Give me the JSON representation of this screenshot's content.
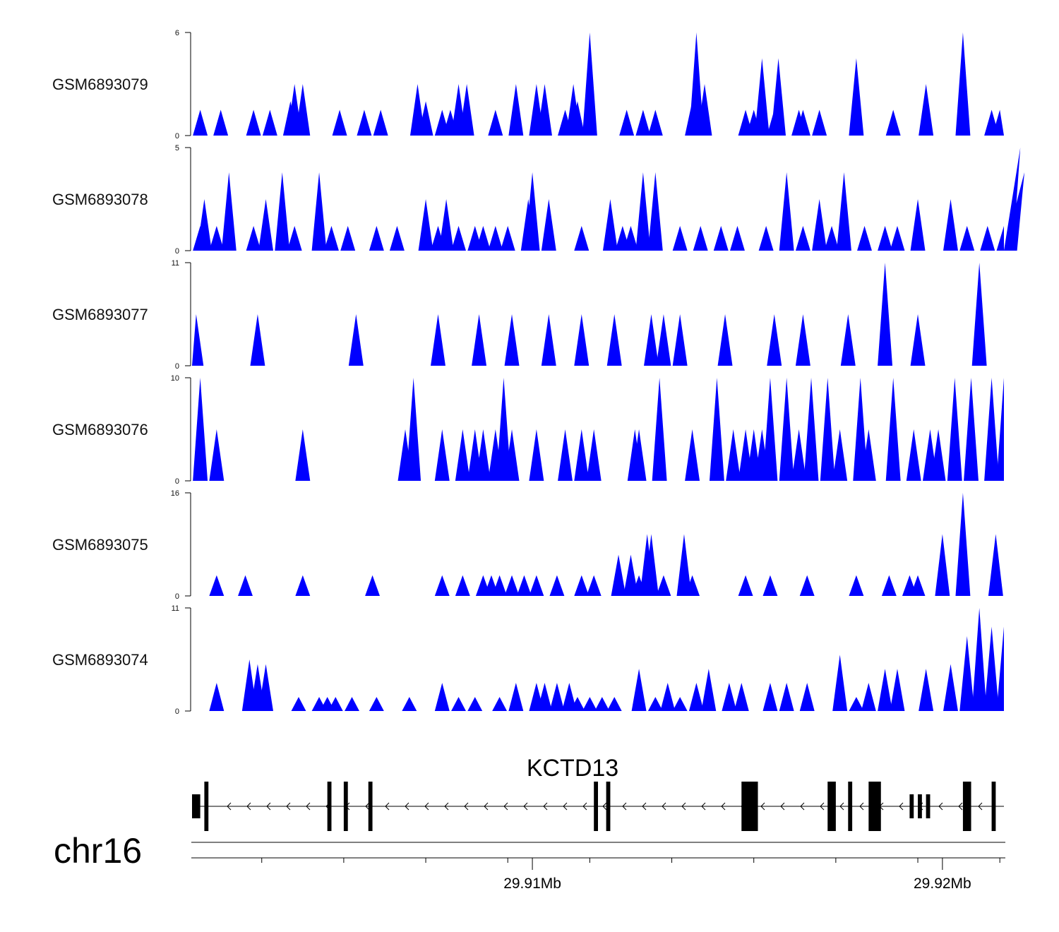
{
  "chart_data": {
    "type": "area",
    "title": "",
    "xlabel": "",
    "ylabel": "",
    "x_range_mb": [
      29.9017,
      29.9215
    ],
    "color": "#0000ff",
    "tracks": [
      {
        "name": "GSM6893079",
        "ymax": 6,
        "ylim": [
          0,
          6
        ],
        "peaks": [
          [
            29.9019,
            1.5
          ],
          [
            29.9024,
            1.5
          ],
          [
            29.9032,
            1.5
          ],
          [
            29.9036,
            1.5
          ],
          [
            29.9041,
            2.0
          ],
          [
            29.9042,
            3.0
          ],
          [
            29.9044,
            3.0
          ],
          [
            29.9053,
            1.5
          ],
          [
            29.9059,
            1.5
          ],
          [
            29.9063,
            1.5
          ],
          [
            29.9072,
            3.0
          ],
          [
            29.9074,
            2.0
          ],
          [
            29.9078,
            1.5
          ],
          [
            29.908,
            1.5
          ],
          [
            29.9082,
            3.0
          ],
          [
            29.9084,
            3.0
          ],
          [
            29.9091,
            1.5
          ],
          [
            29.9096,
            3.0
          ],
          [
            29.9101,
            3.0
          ],
          [
            29.9103,
            3.0
          ],
          [
            29.9108,
            1.5
          ],
          [
            29.911,
            3.0
          ],
          [
            29.9111,
            2.0
          ],
          [
            29.9114,
            6.0
          ],
          [
            29.9123,
            1.5
          ],
          [
            29.9127,
            1.5
          ],
          [
            29.913,
            1.5
          ],
          [
            29.9139,
            2.0
          ],
          [
            29.914,
            6.0
          ],
          [
            29.9142,
            3.0
          ],
          [
            29.9152,
            1.5
          ],
          [
            29.9154,
            1.5
          ],
          [
            29.9156,
            4.5
          ],
          [
            29.9159,
            1.5
          ],
          [
            29.916,
            4.5
          ],
          [
            29.9165,
            1.5
          ],
          [
            29.9166,
            1.5
          ],
          [
            29.917,
            1.5
          ],
          [
            29.9179,
            4.5
          ],
          [
            29.9188,
            1.5
          ],
          [
            29.9196,
            3.0
          ],
          [
            29.9205,
            6.0
          ],
          [
            29.9212,
            1.5
          ],
          [
            29.9214,
            1.5
          ]
        ]
      },
      {
        "name": "GSM6893078",
        "ymax": 5,
        "ylim": [
          0,
          5
        ],
        "peaks": [
          [
            29.9019,
            1.2
          ],
          [
            29.902,
            2.5
          ],
          [
            29.9023,
            1.2
          ],
          [
            29.9026,
            3.8
          ],
          [
            29.9032,
            1.2
          ],
          [
            29.9035,
            2.5
          ],
          [
            29.9039,
            3.8
          ],
          [
            29.9042,
            1.2
          ],
          [
            29.9048,
            3.8
          ],
          [
            29.9051,
            1.2
          ],
          [
            29.9055,
            1.2
          ],
          [
            29.9062,
            1.2
          ],
          [
            29.9067,
            1.2
          ],
          [
            29.9074,
            2.5
          ],
          [
            29.9077,
            1.2
          ],
          [
            29.9079,
            2.5
          ],
          [
            29.9082,
            1.2
          ],
          [
            29.9086,
            1.2
          ],
          [
            29.9088,
            1.2
          ],
          [
            29.9091,
            1.2
          ],
          [
            29.9094,
            1.2
          ],
          [
            29.9099,
            2.5
          ],
          [
            29.91,
            3.8
          ],
          [
            29.9104,
            2.5
          ],
          [
            29.9112,
            1.2
          ],
          [
            29.9119,
            2.5
          ],
          [
            29.9122,
            1.2
          ],
          [
            29.9124,
            1.2
          ],
          [
            29.9127,
            3.8
          ],
          [
            29.913,
            3.8
          ],
          [
            29.9136,
            1.2
          ],
          [
            29.9141,
            1.2
          ],
          [
            29.9146,
            1.2
          ],
          [
            29.915,
            1.2
          ],
          [
            29.9157,
            1.2
          ],
          [
            29.9162,
            3.8
          ],
          [
            29.9166,
            1.2
          ],
          [
            29.917,
            2.5
          ],
          [
            29.9173,
            1.2
          ],
          [
            29.9176,
            3.8
          ],
          [
            29.9181,
            1.2
          ],
          [
            29.9186,
            1.2
          ],
          [
            29.9189,
            1.2
          ],
          [
            29.9194,
            2.5
          ],
          [
            29.9202,
            2.5
          ],
          [
            29.9206,
            1.2
          ],
          [
            29.9211,
            1.2
          ],
          [
            29.9215,
            1.2
          ],
          [
            29.9219,
            5.0
          ],
          [
            29.922,
            3.8
          ]
        ]
      },
      {
        "name": "GSM6893077",
        "ymax": 11,
        "ylim": [
          0,
          11
        ],
        "peaks": [
          [
            29.9018,
            5.5
          ],
          [
            29.9033,
            5.5
          ],
          [
            29.9057,
            5.5
          ],
          [
            29.9077,
            5.5
          ],
          [
            29.9087,
            5.5
          ],
          [
            29.9095,
            5.5
          ],
          [
            29.9104,
            5.5
          ],
          [
            29.9112,
            5.5
          ],
          [
            29.912,
            5.5
          ],
          [
            29.9129,
            5.5
          ],
          [
            29.9132,
            5.5
          ],
          [
            29.9136,
            5.5
          ],
          [
            29.9147,
            5.5
          ],
          [
            29.9159,
            5.5
          ],
          [
            29.9166,
            5.5
          ],
          [
            29.9177,
            5.5
          ],
          [
            29.9186,
            11.0
          ],
          [
            29.9194,
            5.5
          ],
          [
            29.9209,
            11.0
          ]
        ]
      },
      {
        "name": "GSM6893076",
        "ymax": 10,
        "ylim": [
          0,
          10
        ],
        "peaks": [
          [
            29.9019,
            10.0
          ],
          [
            29.9023,
            5.0
          ],
          [
            29.9044,
            5.0
          ],
          [
            29.9069,
            5.0
          ],
          [
            29.9071,
            10.0
          ],
          [
            29.9078,
            5.0
          ],
          [
            29.9083,
            5.0
          ],
          [
            29.9086,
            5.0
          ],
          [
            29.9088,
            5.0
          ],
          [
            29.9091,
            5.0
          ],
          [
            29.9093,
            10.0
          ],
          [
            29.9095,
            5.0
          ],
          [
            29.9101,
            5.0
          ],
          [
            29.9108,
            5.0
          ],
          [
            29.9112,
            5.0
          ],
          [
            29.9115,
            5.0
          ],
          [
            29.9125,
            5.0
          ],
          [
            29.9126,
            5.0
          ],
          [
            29.9131,
            10.0
          ],
          [
            29.9139,
            5.0
          ],
          [
            29.9145,
            10.0
          ],
          [
            29.9149,
            5.0
          ],
          [
            29.9152,
            5.0
          ],
          [
            29.9154,
            5.0
          ],
          [
            29.9156,
            5.0
          ],
          [
            29.9158,
            10.0
          ],
          [
            29.9162,
            10.0
          ],
          [
            29.9165,
            5.0
          ],
          [
            29.9168,
            10.0
          ],
          [
            29.9172,
            10.0
          ],
          [
            29.9175,
            5.0
          ],
          [
            29.918,
            10.0
          ],
          [
            29.9182,
            5.0
          ],
          [
            29.9188,
            10.0
          ],
          [
            29.9193,
            5.0
          ],
          [
            29.9197,
            5.0
          ],
          [
            29.9199,
            5.0
          ],
          [
            29.9203,
            10.0
          ],
          [
            29.9207,
            10.0
          ],
          [
            29.9212,
            10.0
          ],
          [
            29.9215,
            10.0
          ]
        ]
      },
      {
        "name": "GSM6893075",
        "ymax": 16,
        "ylim": [
          0,
          16
        ],
        "peaks": [
          [
            29.9023,
            3.2
          ],
          [
            29.903,
            3.2
          ],
          [
            29.9044,
            3.2
          ],
          [
            29.9061,
            3.2
          ],
          [
            29.9078,
            3.2
          ],
          [
            29.9083,
            3.2
          ],
          [
            29.9088,
            3.2
          ],
          [
            29.909,
            3.2
          ],
          [
            29.9092,
            3.2
          ],
          [
            29.9095,
            3.2
          ],
          [
            29.9098,
            3.2
          ],
          [
            29.9101,
            3.2
          ],
          [
            29.9106,
            3.2
          ],
          [
            29.9112,
            3.2
          ],
          [
            29.9115,
            3.2
          ],
          [
            29.9121,
            6.4
          ],
          [
            29.9124,
            6.4
          ],
          [
            29.9126,
            3.2
          ],
          [
            29.9128,
            9.6
          ],
          [
            29.9129,
            9.6
          ],
          [
            29.9132,
            3.2
          ],
          [
            29.9137,
            9.6
          ],
          [
            29.9139,
            3.2
          ],
          [
            29.9152,
            3.2
          ],
          [
            29.9158,
            3.2
          ],
          [
            29.9167,
            3.2
          ],
          [
            29.9179,
            3.2
          ],
          [
            29.9187,
            3.2
          ],
          [
            29.9192,
            3.2
          ],
          [
            29.9194,
            3.2
          ],
          [
            29.92,
            9.6
          ],
          [
            29.9205,
            16.0
          ],
          [
            29.9213,
            9.6
          ]
        ]
      },
      {
        "name": "GSM6893074",
        "ymax": 11,
        "ylim": [
          0,
          11
        ],
        "peaks": [
          [
            29.9023,
            3.0
          ],
          [
            29.9031,
            5.5
          ],
          [
            29.9033,
            5.0
          ],
          [
            29.9035,
            5.0
          ],
          [
            29.9043,
            1.5
          ],
          [
            29.9048,
            1.5
          ],
          [
            29.905,
            1.5
          ],
          [
            29.9052,
            1.5
          ],
          [
            29.9056,
            1.5
          ],
          [
            29.9062,
            1.5
          ],
          [
            29.907,
            1.5
          ],
          [
            29.9078,
            3.0
          ],
          [
            29.9082,
            1.5
          ],
          [
            29.9086,
            1.5
          ],
          [
            29.9092,
            1.5
          ],
          [
            29.9096,
            3.0
          ],
          [
            29.9101,
            3.0
          ],
          [
            29.9103,
            3.0
          ],
          [
            29.9106,
            3.0
          ],
          [
            29.9109,
            3.0
          ],
          [
            29.9111,
            1.5
          ],
          [
            29.9114,
            1.5
          ],
          [
            29.9117,
            1.5
          ],
          [
            29.912,
            1.5
          ],
          [
            29.9126,
            4.5
          ],
          [
            29.913,
            1.5
          ],
          [
            29.9133,
            3.0
          ],
          [
            29.9136,
            1.5
          ],
          [
            29.914,
            3.0
          ],
          [
            29.9143,
            4.5
          ],
          [
            29.9148,
            3.0
          ],
          [
            29.9151,
            3.0
          ],
          [
            29.9158,
            3.0
          ],
          [
            29.9162,
            3.0
          ],
          [
            29.9167,
            3.0
          ],
          [
            29.9175,
            6.0
          ],
          [
            29.9179,
            1.5
          ],
          [
            29.9182,
            3.0
          ],
          [
            29.9186,
            4.5
          ],
          [
            29.9189,
            4.5
          ],
          [
            29.9196,
            4.5
          ],
          [
            29.9202,
            5.0
          ],
          [
            29.9206,
            8.0
          ],
          [
            29.9209,
            11.0
          ],
          [
            29.9212,
            9.0
          ],
          [
            29.9215,
            9.0
          ]
        ]
      }
    ],
    "gene": {
      "symbol": "KCTD13",
      "strand": "-",
      "start": 29.9017,
      "end": 29.9215,
      "utrs": [
        [
          29.9017,
          29.9019
        ],
        [
          29.9192,
          29.9193
        ],
        [
          29.9194,
          29.9195
        ],
        [
          29.9196,
          29.9197
        ]
      ],
      "exons": [
        [
          29.902,
          29.9021
        ],
        [
          29.905,
          29.9051
        ],
        [
          29.9054,
          29.9055
        ],
        [
          29.906,
          29.9061
        ],
        [
          29.9115,
          29.9116
        ],
        [
          29.9118,
          29.9119
        ],
        [
          29.9151,
          29.9155
        ],
        [
          29.9172,
          29.9174
        ],
        [
          29.9177,
          29.9178
        ],
        [
          29.9182,
          29.9185
        ],
        [
          29.9205,
          29.9207
        ],
        [
          29.9212,
          29.9213
        ]
      ]
    },
    "axis": {
      "chromosome": "chr16",
      "major_ticks": [
        29.91,
        29.92
      ],
      "major_labels": [
        "29.91Mb",
        "29.92Mb"
      ],
      "minor_ticks": [
        29.9034,
        29.9054,
        29.9074,
        29.9094,
        29.9114,
        29.9134,
        29.9154,
        29.9174,
        29.9194,
        29.9214
      ]
    }
  }
}
